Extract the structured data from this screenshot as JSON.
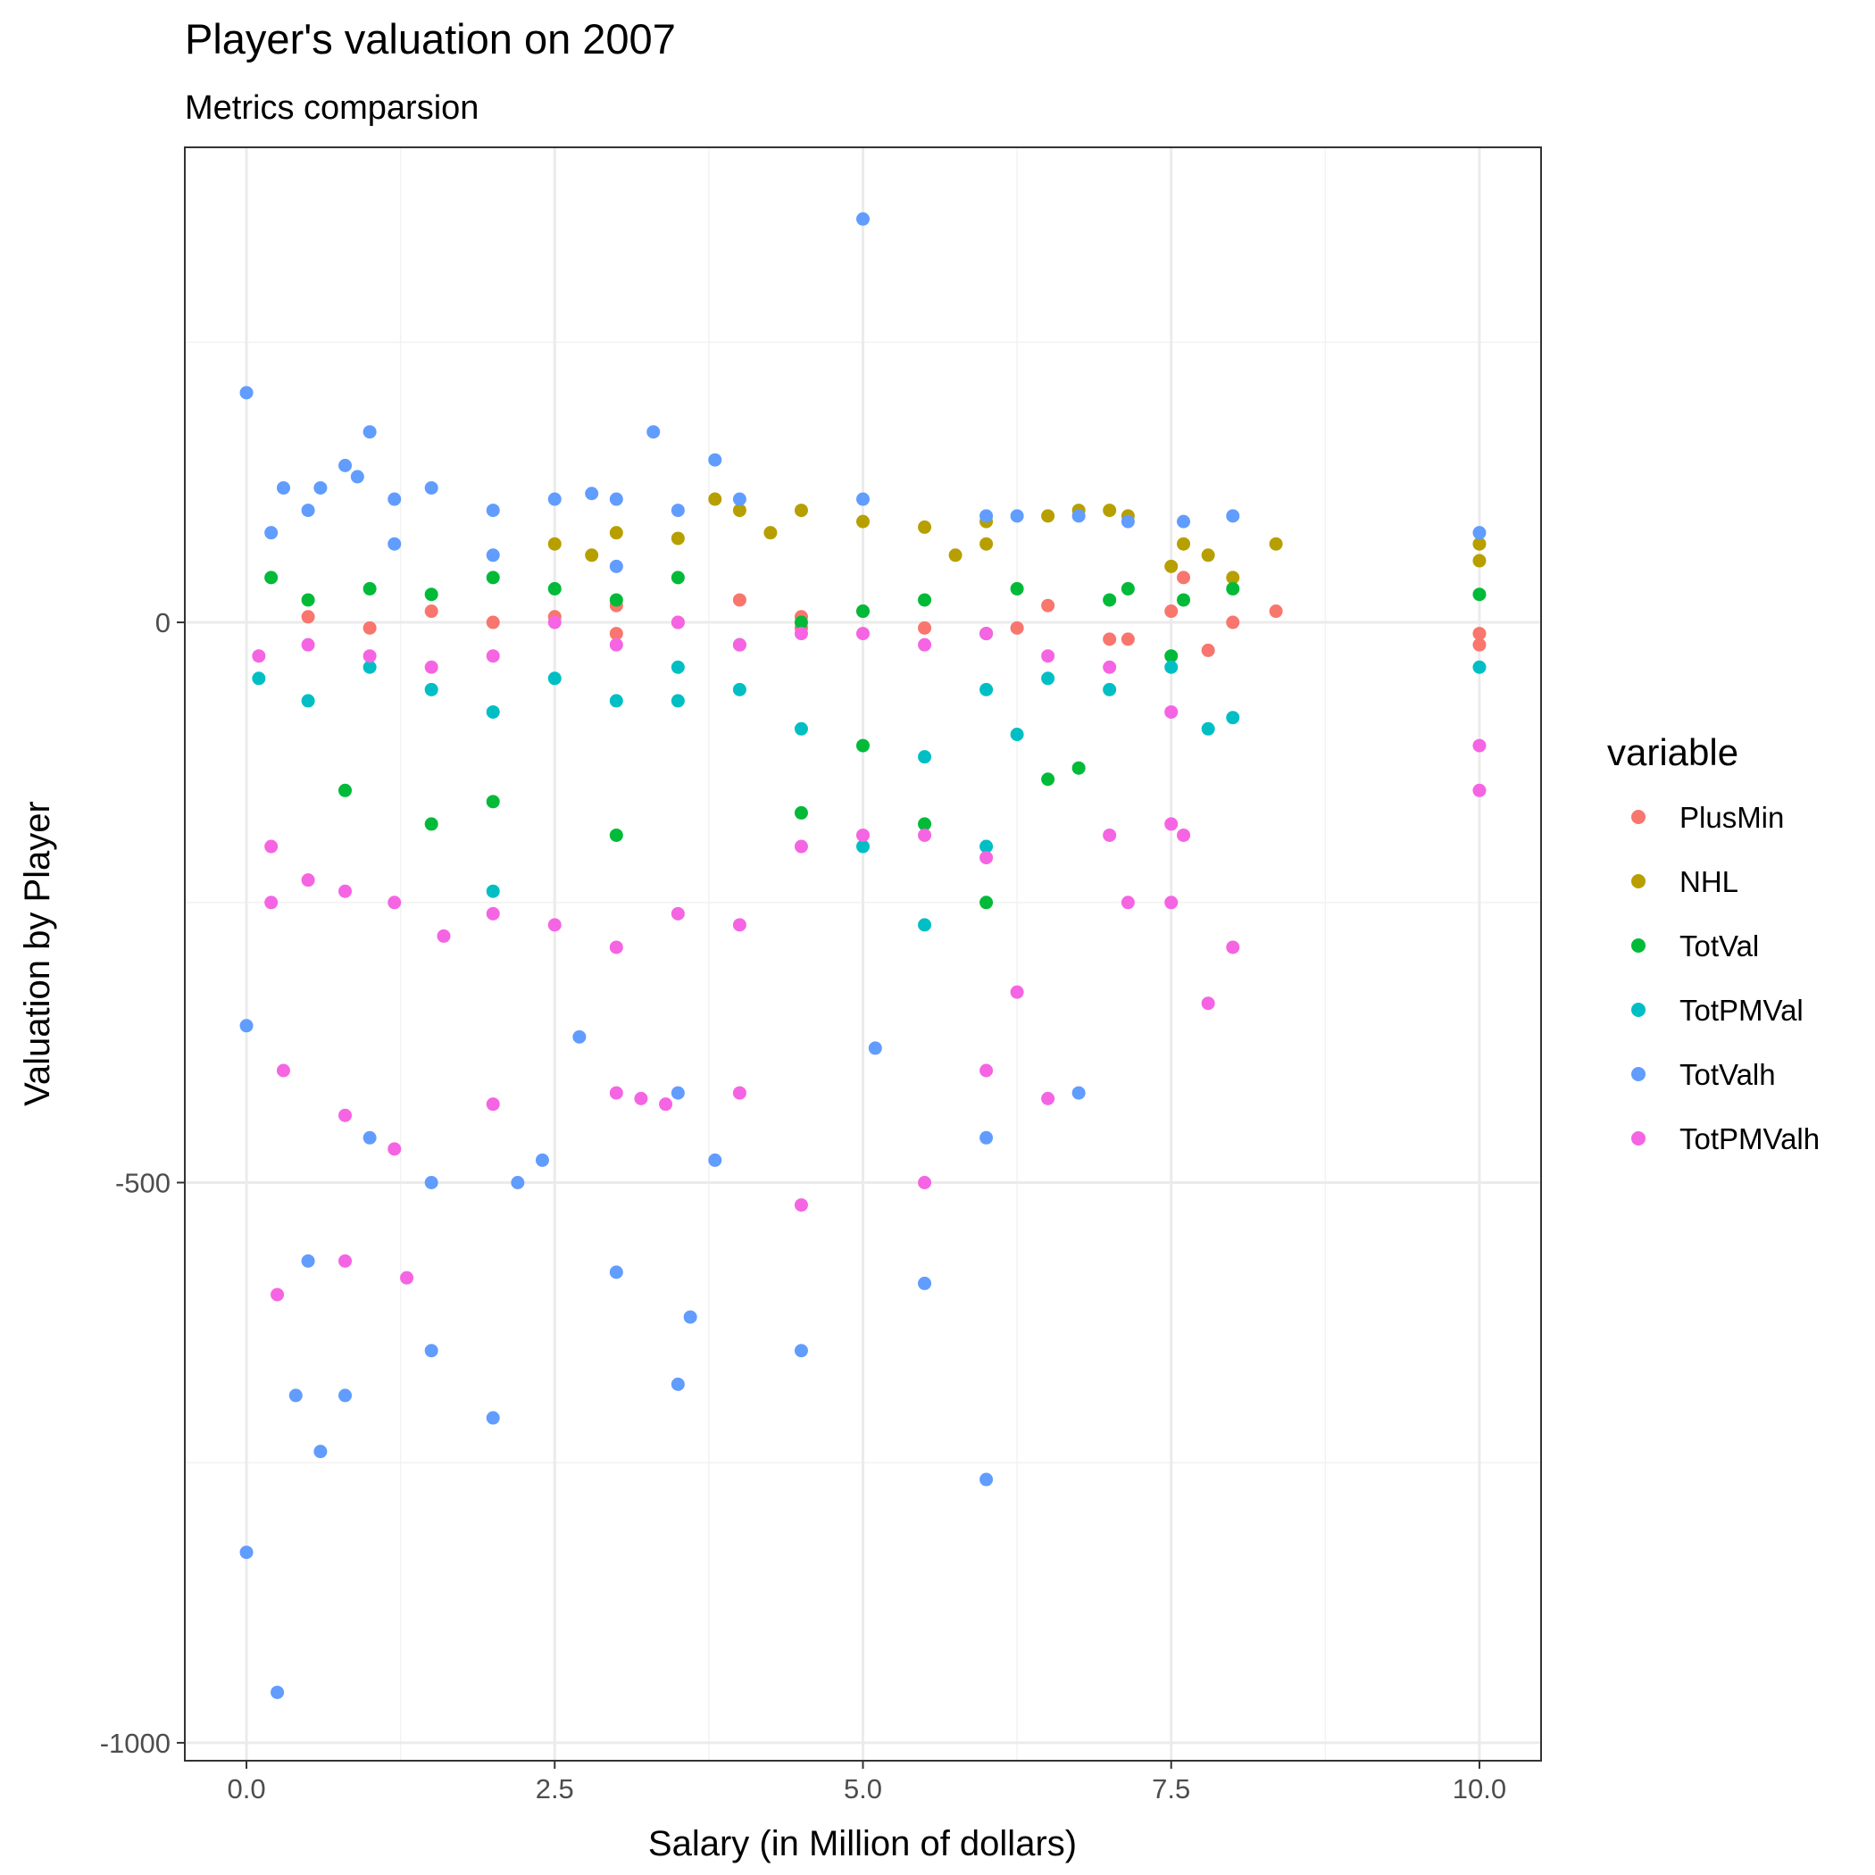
{
  "chart_data": {
    "type": "scatter",
    "title": "Player's valuation on 2007",
    "subtitle": "Metrics comparsion",
    "xlabel": "Salary (in Million of dollars)",
    "ylabel": "Valuation by Player",
    "xlim": [
      -0.5,
      10.5
    ],
    "ylim": [
      -1016,
      424
    ],
    "x_ticks": [
      0,
      2.5,
      5,
      7.5,
      10
    ],
    "x_tick_labels": [
      "0.0",
      "2.5",
      "5.0",
      "7.5",
      "10.0"
    ],
    "y_ticks": [
      -1000,
      -500,
      0
    ],
    "y_tick_labels": [
      "-1000",
      "-500",
      "0"
    ],
    "grid": true,
    "legend": {
      "title": "variable",
      "position": "right"
    },
    "series": [
      {
        "name": "PlusMin",
        "color": "#F8766D",
        "points": [
          [
            0.5,
            5
          ],
          [
            1,
            -5
          ],
          [
            1.5,
            10
          ],
          [
            2,
            0
          ],
          [
            2.5,
            5
          ],
          [
            3,
            -10
          ],
          [
            3.5,
            0
          ],
          [
            4,
            20
          ],
          [
            4.5,
            -5
          ],
          [
            5,
            10
          ],
          [
            5.5,
            -5
          ],
          [
            6,
            -10
          ],
          [
            6.25,
            -5
          ],
          [
            6.5,
            15
          ],
          [
            7,
            -15
          ],
          [
            7.15,
            -15
          ],
          [
            7.5,
            10
          ],
          [
            7.6,
            40
          ],
          [
            7.8,
            -25
          ],
          [
            8,
            0
          ],
          [
            8.35,
            10
          ],
          [
            10,
            -10
          ],
          [
            10,
            -20
          ],
          [
            3,
            15
          ],
          [
            4.5,
            5
          ]
        ]
      },
      {
        "name": "NHL",
        "color": "#B79F00",
        "points": [
          [
            2.5,
            70
          ],
          [
            3,
            80
          ],
          [
            3.5,
            75
          ],
          [
            3.8,
            110
          ],
          [
            4,
            100
          ],
          [
            4.25,
            80
          ],
          [
            4.5,
            100
          ],
          [
            5,
            90
          ],
          [
            5.5,
            85
          ],
          [
            5.75,
            60
          ],
          [
            6,
            90
          ],
          [
            6.5,
            95
          ],
          [
            6.75,
            100
          ],
          [
            7,
            100
          ],
          [
            7.15,
            95
          ],
          [
            7.5,
            50
          ],
          [
            7.6,
            70
          ],
          [
            7.8,
            60
          ],
          [
            8,
            40
          ],
          [
            8.35,
            70
          ],
          [
            10,
            70
          ],
          [
            10,
            55
          ],
          [
            6,
            70
          ],
          [
            2.8,
            60
          ]
        ]
      },
      {
        "name": "TotVal",
        "color": "#00BA38",
        "points": [
          [
            0.2,
            40
          ],
          [
            0.5,
            20
          ],
          [
            1,
            30
          ],
          [
            1.5,
            25
          ],
          [
            2,
            40
          ],
          [
            2.5,
            30
          ],
          [
            3,
            20
          ],
          [
            3.5,
            40
          ],
          [
            4,
            -20
          ],
          [
            4.5,
            0
          ],
          [
            5,
            10
          ],
          [
            5.5,
            20
          ],
          [
            6,
            -10
          ],
          [
            6.25,
            30
          ],
          [
            6.5,
            -140
          ],
          [
            6.75,
            -130
          ],
          [
            7,
            20
          ],
          [
            7.15,
            30
          ],
          [
            7.5,
            -30
          ],
          [
            7.6,
            20
          ],
          [
            8,
            30
          ],
          [
            10,
            25
          ],
          [
            0.8,
            -150
          ],
          [
            1.5,
            -180
          ],
          [
            2,
            -160
          ],
          [
            3,
            -190
          ],
          [
            4.5,
            -170
          ],
          [
            5,
            -110
          ],
          [
            5.5,
            -180
          ],
          [
            6,
            -250
          ]
        ]
      },
      {
        "name": "TotPMVal",
        "color": "#00BFC4",
        "points": [
          [
            0.1,
            -50
          ],
          [
            0.5,
            -70
          ],
          [
            1,
            -40
          ],
          [
            1.5,
            -60
          ],
          [
            2,
            -80
          ],
          [
            2.5,
            -50
          ],
          [
            3,
            -70
          ],
          [
            3.5,
            -40
          ],
          [
            4,
            -60
          ],
          [
            4.5,
            -95
          ],
          [
            5,
            -200
          ],
          [
            5.5,
            -120
          ],
          [
            6,
            -60
          ],
          [
            6.25,
            -100
          ],
          [
            6.5,
            -50
          ],
          [
            7,
            -60
          ],
          [
            7.5,
            -40
          ],
          [
            7.8,
            -95
          ],
          [
            8,
            -85
          ],
          [
            10,
            -40
          ],
          [
            5.5,
            -270
          ],
          [
            6,
            -200
          ],
          [
            2,
            -240
          ],
          [
            3.5,
            -70
          ]
        ]
      },
      {
        "name": "TotValh",
        "color": "#619CFF",
        "points": [
          [
            5,
            360
          ],
          [
            0,
            205
          ],
          [
            1,
            170
          ],
          [
            3.3,
            170
          ],
          [
            3.8,
            145
          ],
          [
            0.3,
            120
          ],
          [
            0.6,
            120
          ],
          [
            0.8,
            140
          ],
          [
            0.9,
            130
          ],
          [
            1.2,
            110
          ],
          [
            1.5,
            120
          ],
          [
            2,
            100
          ],
          [
            2.5,
            110
          ],
          [
            2.8,
            115
          ],
          [
            3,
            110
          ],
          [
            3.5,
            100
          ],
          [
            4,
            110
          ],
          [
            5,
            110
          ],
          [
            6,
            95
          ],
          [
            6.25,
            95
          ],
          [
            6.75,
            95
          ],
          [
            7.15,
            90
          ],
          [
            7.6,
            90
          ],
          [
            8,
            95
          ],
          [
            10,
            80
          ],
          [
            0.2,
            80
          ],
          [
            0.5,
            100
          ],
          [
            1.2,
            70
          ],
          [
            2,
            60
          ],
          [
            3,
            50
          ],
          [
            0,
            -830
          ],
          [
            0.4,
            -690
          ],
          [
            0.6,
            -740
          ],
          [
            0.8,
            -690
          ],
          [
            1.5,
            -650
          ],
          [
            2,
            -710
          ],
          [
            0,
            -360
          ],
          [
            0.5,
            -570
          ],
          [
            1,
            -460
          ],
          [
            1.5,
            -500
          ],
          [
            2.2,
            -500
          ],
          [
            2.4,
            -480
          ],
          [
            3,
            -580
          ],
          [
            3.5,
            -680
          ],
          [
            3.6,
            -620
          ],
          [
            3.8,
            -480
          ],
          [
            4.5,
            -650
          ],
          [
            5.1,
            -380
          ],
          [
            5.5,
            -590
          ],
          [
            6,
            -460
          ],
          [
            6.75,
            -420
          ],
          [
            0.25,
            -955
          ],
          [
            6,
            -765
          ],
          [
            3.5,
            -420
          ],
          [
            2.7,
            -370
          ]
        ]
      },
      {
        "name": "TotPMValh",
        "color": "#F564E3",
        "points": [
          [
            0.1,
            -30
          ],
          [
            0.5,
            -20
          ],
          [
            1,
            -30
          ],
          [
            1.5,
            -40
          ],
          [
            2,
            -30
          ],
          [
            2.5,
            0
          ],
          [
            3,
            -20
          ],
          [
            3.5,
            0
          ],
          [
            4,
            -20
          ],
          [
            4.5,
            -10
          ],
          [
            5,
            -10
          ],
          [
            5.5,
            -20
          ],
          [
            6,
            -10
          ],
          [
            6.5,
            -30
          ],
          [
            7,
            -40
          ],
          [
            7.5,
            -80
          ],
          [
            0.2,
            -200
          ],
          [
            0.5,
            -230
          ],
          [
            0.8,
            -240
          ],
          [
            1.2,
            -250
          ],
          [
            1.6,
            -280
          ],
          [
            2,
            -260
          ],
          [
            2.5,
            -270
          ],
          [
            3,
            -290
          ],
          [
            3.5,
            -260
          ],
          [
            4,
            -270
          ],
          [
            4.5,
            -200
          ],
          [
            5,
            -190
          ],
          [
            5.5,
            -190
          ],
          [
            6,
            -210
          ],
          [
            7,
            -190
          ],
          [
            7.5,
            -180
          ],
          [
            7.6,
            -190
          ],
          [
            0.3,
            -400
          ],
          [
            0.8,
            -440
          ],
          [
            1.2,
            -470
          ],
          [
            2,
            -430
          ],
          [
            3,
            -420
          ],
          [
            3.4,
            -430
          ],
          [
            4,
            -420
          ],
          [
            4.5,
            -520
          ],
          [
            5.5,
            -500
          ],
          [
            6,
            -400
          ],
          [
            6.25,
            -330
          ],
          [
            6.5,
            -425
          ],
          [
            7.15,
            -250
          ],
          [
            7.5,
            -250
          ],
          [
            7.8,
            -340
          ],
          [
            8,
            -290
          ],
          [
            0.8,
            -570
          ],
          [
            1.3,
            -585
          ],
          [
            0.25,
            -600
          ],
          [
            10,
            -110
          ],
          [
            10,
            -150
          ],
          [
            0.2,
            -250
          ],
          [
            3.2,
            -425
          ]
        ]
      }
    ]
  }
}
